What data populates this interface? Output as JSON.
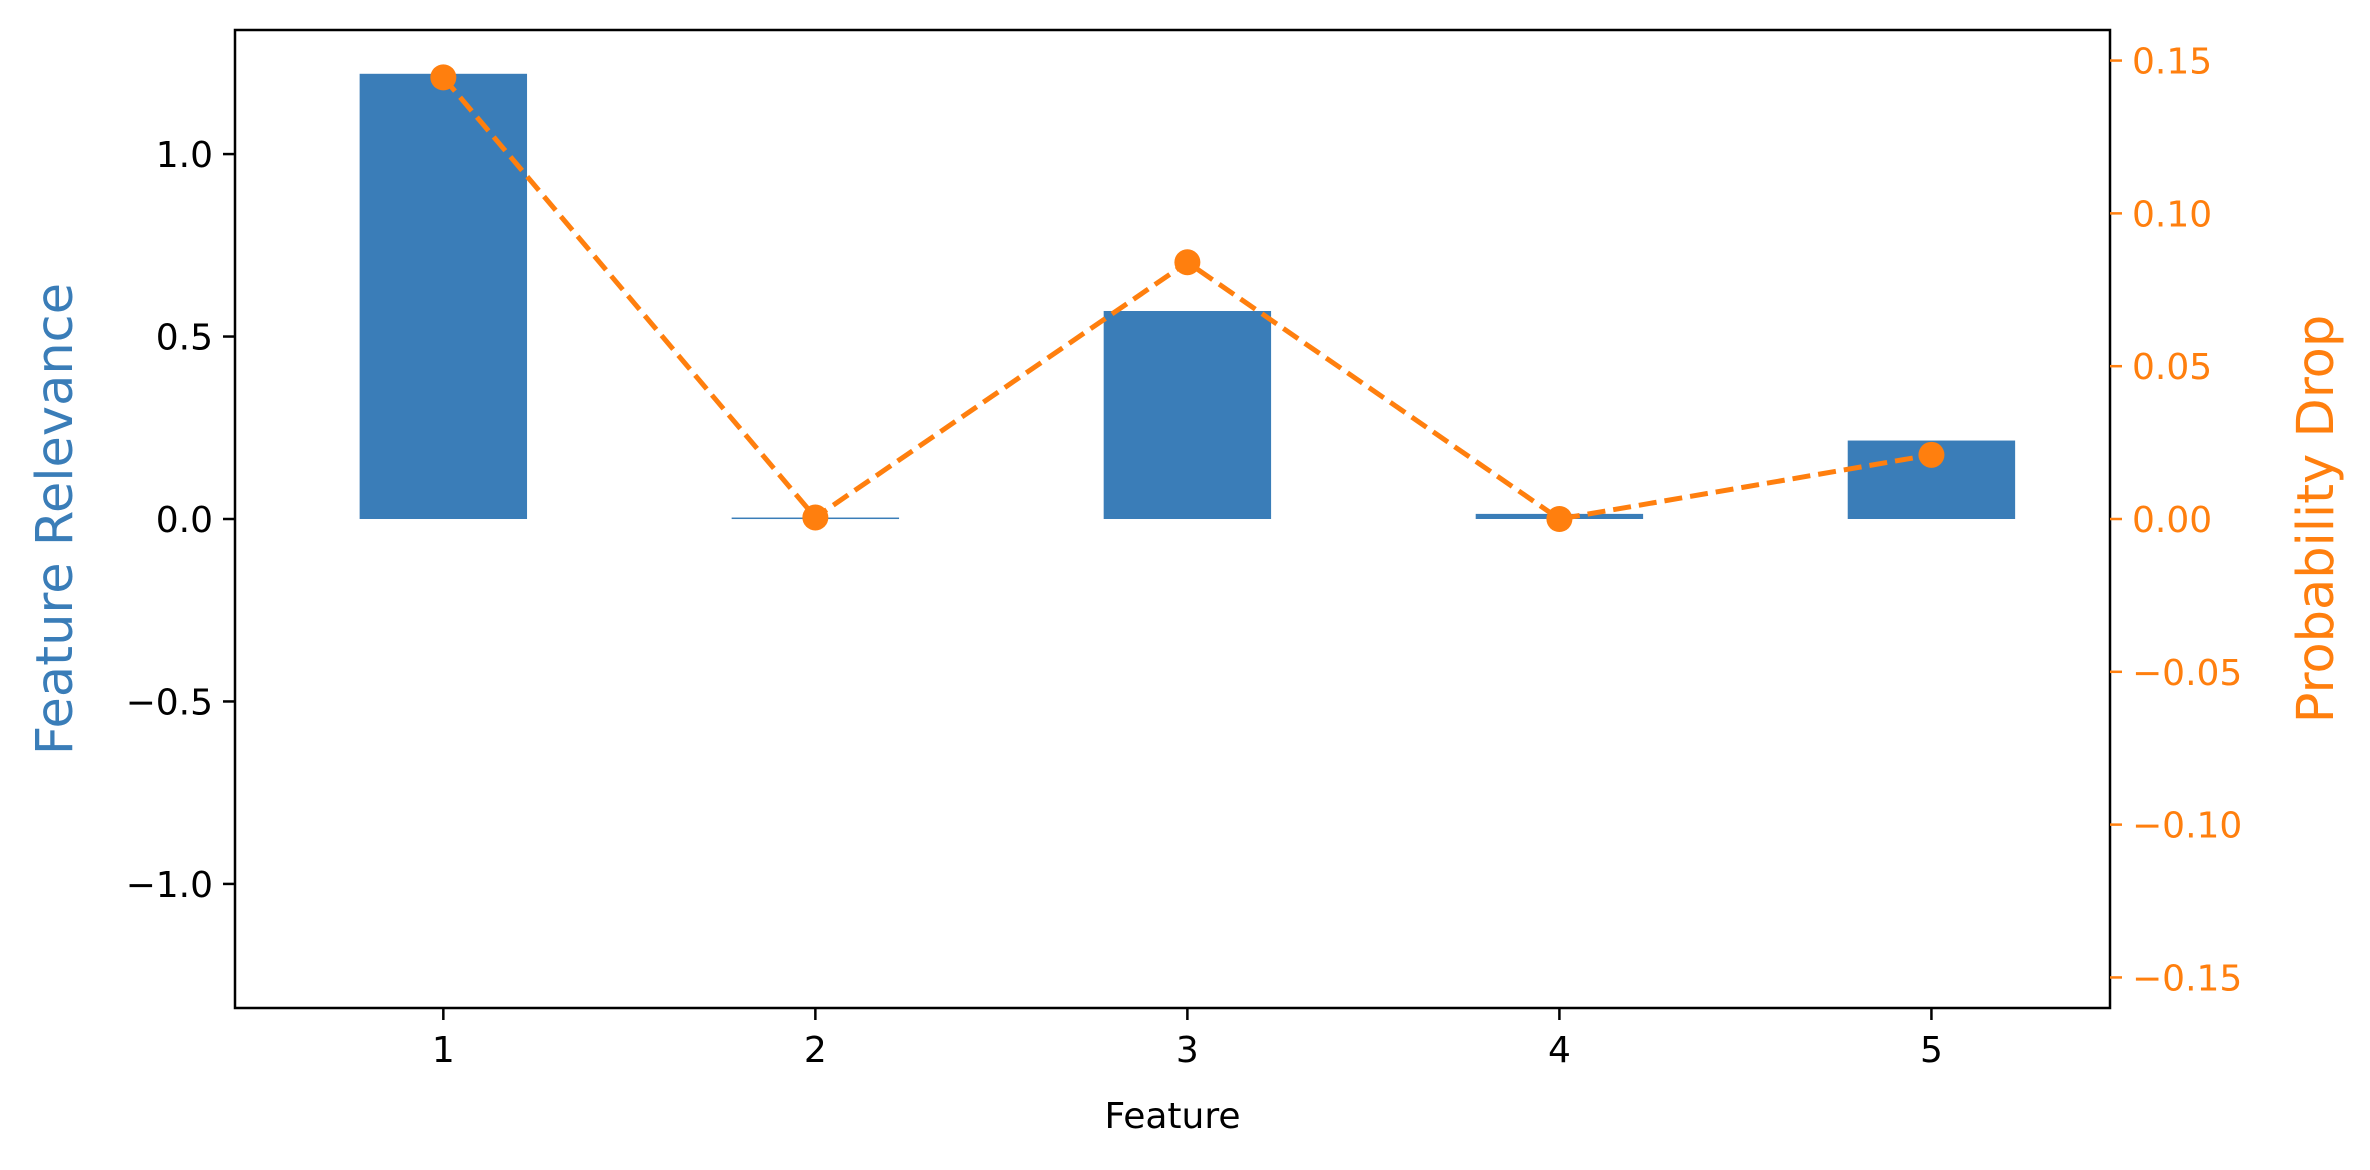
{
  "chart_data": {
    "type": "bar+line",
    "xlabel": "Feature",
    "categories": [
      "1",
      "2",
      "3",
      "4",
      "5"
    ],
    "x": [
      1,
      2,
      3,
      4,
      5
    ],
    "series": [
      {
        "name": "Feature Relevance",
        "type": "bar",
        "axis": "left",
        "color": "#3a7db8",
        "values": [
          1.22,
          0.004,
          0.57,
          0.014,
          0.215
        ]
      },
      {
        "name": "Probability Drop",
        "type": "line",
        "axis": "right",
        "color": "#ff7f0e",
        "line_style": "dashed",
        "marker": "circle",
        "values": [
          0.1445,
          0.0005,
          0.084,
          0.0,
          0.021
        ]
      }
    ],
    "left_axis": {
      "label": "Feature Relevance",
      "color": "#3a7db8",
      "ylim": [
        -1.34,
        1.34
      ],
      "ticks": [
        -1.0,
        -0.5,
        0.0,
        0.5,
        1.0
      ],
      "tick_labels": [
        "−1.0",
        "−0.5",
        "0.0",
        "0.5",
        "1.0"
      ]
    },
    "right_axis": {
      "label": "Probability Drop",
      "color": "#ff7f0e",
      "ylim": [
        -0.16,
        0.16
      ],
      "ticks": [
        -0.15,
        -0.1,
        -0.05,
        0.0,
        0.05,
        0.1,
        0.15
      ],
      "tick_labels": [
        "−0.15",
        "−0.10",
        "−0.05",
        "0.00",
        "0.05",
        "0.10",
        "0.15"
      ]
    },
    "xlim": [
      0.44,
      5.48
    ],
    "grid": false
  }
}
